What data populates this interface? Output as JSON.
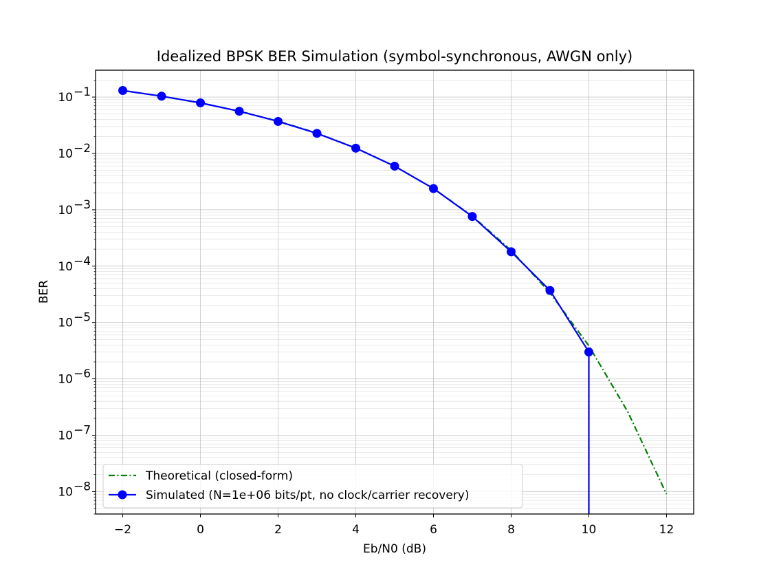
{
  "chart_data": {
    "type": "line",
    "title": "Idealized BPSK BER Simulation (symbol-synchronous, AWGN only)",
    "xlabel": "Eb/N0 (dB)",
    "ylabel": "BER",
    "yscale": "log",
    "xlim": [
      -2.7,
      12.7
    ],
    "ylim": [
      4e-09,
      0.3
    ],
    "xticks": [
      -2,
      0,
      2,
      4,
      6,
      8,
      10,
      12
    ],
    "xtick_labels": [
      "−2",
      "0",
      "2",
      "4",
      "6",
      "8",
      "10",
      "12"
    ],
    "yticks": [
      {
        "value": 0.1,
        "base": "10",
        "exp": "−1"
      },
      {
        "value": 0.01,
        "base": "10",
        "exp": "−2"
      },
      {
        "value": 0.001,
        "base": "10",
        "exp": "−3"
      },
      {
        "value": 0.0001,
        "base": "10",
        "exp": "−4"
      },
      {
        "value": 1e-05,
        "base": "10",
        "exp": "−5"
      },
      {
        "value": 1e-06,
        "base": "10",
        "exp": "−6"
      },
      {
        "value": 1e-07,
        "base": "10",
        "exp": "−7"
      },
      {
        "value": 1e-08,
        "base": "10",
        "exp": "−8"
      }
    ],
    "grid": true,
    "legend_position": "lower-left",
    "series": [
      {
        "name": "Theoretical (closed-form)",
        "color": "#008000",
        "style": "dash-dot",
        "x": [
          -2,
          -1,
          0,
          1,
          2,
          3,
          4,
          5,
          6,
          7,
          8,
          9,
          10,
          11,
          12
        ],
        "y": [
          0.1306,
          0.104,
          0.0786,
          0.0563,
          0.0375,
          0.0229,
          0.0125,
          0.00595,
          0.00239,
          0.000773,
          0.000191,
          3.36e-05,
          3.87e-06,
          2.62e-07,
          9e-09
        ]
      },
      {
        "name": "Simulated (N=1e+06 bits/pt, no clock/carrier recovery)",
        "color": "#0000ff",
        "style": "solid",
        "marker": "circle",
        "x": [
          -2,
          -1,
          0,
          1,
          2,
          3,
          4,
          5,
          6,
          7,
          8,
          9,
          10
        ],
        "y": [
          0.131,
          0.1038,
          0.079,
          0.056,
          0.037,
          0.0227,
          0.0124,
          0.00595,
          0.00238,
          0.00076,
          0.00018,
          3.7e-05,
          3e-06
        ],
        "drops_to_zero_at_x": 10
      }
    ]
  }
}
